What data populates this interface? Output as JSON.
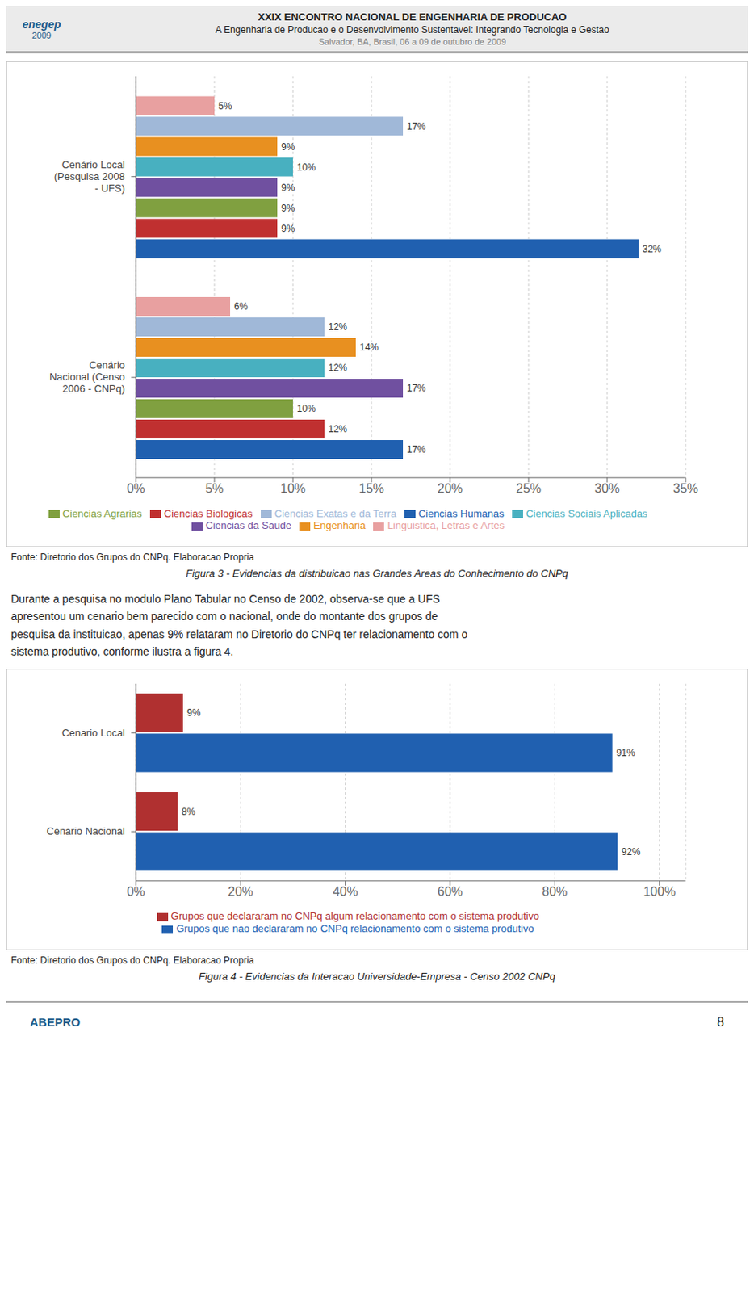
{
  "title": "XXIX ENCONTRO NACIONAL DE ENGENHARIA DE PRODUCAO",
  "subtitle": "A Engenharia de Producao e o Desenvolvimento Sustentavel:  Integrando Tecnologia e Gestao",
  "annotations": [
    "Salvador, BA, Brasil,  06 a 09 de outubro de 2009",
    "enegep",
    "2009",
    "Durante a pesquisa no modulo Plano Tabular no Censo de 2002, observa-se que a UFS",
    "apresentou um cenario bem parecido com o nacional, onde do montante dos grupos de",
    "pesquisa da instituicao, apenas 9% relataram no Diretorio do CNPq ter relacionamento com o",
    "sistema produtivo, conforme ilustra a figura 4.",
    "ABEPRO",
    "8"
  ],
  "chart_data": [
    {
      "type": "bar",
      "orientation": "horizontal",
      "title": "Figura 3 - Evidencias da distribuicao nas Grandes Areas do Conhecimento do CNPq",
      "annotations": [
        "Fonte: Diretorio dos Grupos do CNPq. Elaboracao Propria"
      ],
      "categories": [
        "Cenário Local\n(Pesquisa 2008\n- UFS)",
        "Cenário\nNacional (Censo\n2006 - CNPq)"
      ],
      "series": [
        {
          "name": "Linguistica, Letras e Artes",
          "color": "#E8A0A0",
          "values": [
            5,
            6
          ],
          "value_labels": [
            "5%",
            "6%"
          ]
        },
        {
          "name": "Ciencias Exatas e da Terra",
          "color": "#A0B8D8",
          "values": [
            17,
            12
          ],
          "value_labels": [
            "17%",
            "12%"
          ]
        },
        {
          "name": "Engenharia",
          "color": "#E89020",
          "values": [
            9,
            14
          ],
          "value_labels": [
            "9%",
            "14%"
          ]
        },
        {
          "name": "Ciencias Sociais Aplicadas",
          "color": "#48B0C0",
          "values": [
            10,
            12
          ],
          "value_labels": [
            "10%",
            "12%"
          ]
        },
        {
          "name": "Ciencias da Saude",
          "color": "#7050A0",
          "values": [
            9,
            17
          ],
          "value_labels": [
            "9%",
            "17%"
          ]
        },
        {
          "name": "Ciencias Agrarias",
          "color": "#80A040",
          "values": [
            9,
            10
          ],
          "value_labels": [
            "9%",
            "10%"
          ]
        },
        {
          "name": "Ciencias Biologicas",
          "color": "#C03030",
          "values": [
            9,
            12
          ],
          "value_labels": [
            "9%",
            "12%"
          ]
        },
        {
          "name": "Ciencias Humanas",
          "color": "#2060B0",
          "values": [
            32,
            17
          ],
          "value_labels": [
            "32%",
            "17%"
          ]
        }
      ],
      "xlim": [
        0,
        35
      ],
      "xticks": [
        {
          "value": 0,
          "label": "0%"
        },
        {
          "value": 5,
          "label": "5%"
        },
        {
          "value": 10,
          "label": "10%"
        },
        {
          "value": 15,
          "label": "15%"
        },
        {
          "value": 20,
          "label": "20%"
        },
        {
          "value": 25,
          "label": "25%"
        },
        {
          "value": 30,
          "label": "30%"
        },
        {
          "value": 35,
          "label": "35%"
        }
      ],
      "grid": true,
      "data_labels": true,
      "legend": "bottom"
    },
    {
      "type": "bar",
      "orientation": "horizontal",
      "title": "Figura 4 - Evidencias da Interacao Universidade-Empresa - Censo 2002 CNPq",
      "annotations": [
        "Fonte: Diretorio dos Grupos do CNPq. Elaboracao Propria"
      ],
      "categories": [
        "Cenario Local",
        "Cenario Nacional"
      ],
      "series": [
        {
          "name": "Grupos que declararam no CNPq algum relacionamento com o sistema produtivo",
          "color": "#B03030",
          "values": [
            9,
            8
          ],
          "value_labels": [
            "9%",
            "8%"
          ]
        },
        {
          "name": "Grupos que nao declararam no CNPq relacionamento com o sistema produtivo",
          "color": "#2060B0",
          "values": [
            91,
            92
          ],
          "value_labels": [
            "91%",
            "92%"
          ]
        }
      ],
      "xlim": [
        0,
        105
      ],
      "xticks": [
        {
          "value": 0,
          "label": "0%"
        },
        {
          "value": 20,
          "label": "20%"
        },
        {
          "value": 40,
          "label": "40%"
        },
        {
          "value": 60,
          "label": "60%"
        },
        {
          "value": 80,
          "label": "80%"
        },
        {
          "value": 100,
          "label": "100%"
        }
      ],
      "grid": true,
      "data_labels": true,
      "legend": "bottom"
    }
  ]
}
